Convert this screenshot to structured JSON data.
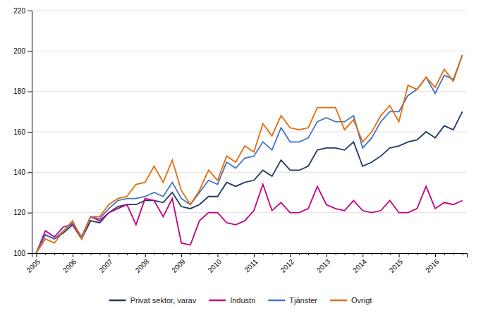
{
  "chart_data": {
    "type": "line",
    "categories": [
      "2005",
      null,
      null,
      null,
      "2006",
      null,
      null,
      null,
      "2007",
      null,
      null,
      null,
      "2008",
      null,
      null,
      null,
      "2009",
      null,
      null,
      null,
      "2010",
      null,
      null,
      null,
      "2011",
      null,
      null,
      null,
      "2012",
      null,
      null,
      null,
      "2013",
      null,
      null,
      null,
      "2014",
      null,
      null,
      null,
      "2015",
      null,
      null,
      null,
      "2016",
      null,
      null,
      null
    ],
    "series": [
      {
        "name": "Privat sektor, varav",
        "color": "#1f3864",
        "values": [
          100,
          109,
          107,
          110,
          114,
          107,
          116,
          115,
          120,
          123,
          124,
          124,
          126,
          126,
          125,
          130,
          123,
          122,
          124,
          128,
          128,
          135,
          133,
          135,
          136,
          141,
          138,
          146,
          141,
          141,
          143,
          151,
          152,
          152,
          151,
          155,
          143,
          145,
          148,
          152,
          153,
          155,
          156,
          160,
          157,
          163,
          161,
          170
        ]
      },
      {
        "name": "Industri",
        "color": "#c00080",
        "values": [
          100,
          111,
          108,
          113,
          114,
          108,
          118,
          116,
          120,
          122,
          124,
          114,
          127,
          126,
          118,
          127,
          105,
          104,
          116,
          120,
          120,
          115,
          114,
          116,
          121,
          134,
          121,
          125,
          120,
          120,
          122,
          133,
          124,
          122,
          121,
          126,
          121,
          120,
          121,
          126,
          120,
          120,
          122,
          133,
          122,
          125,
          124,
          126
        ]
      },
      {
        "name": "Tjänster",
        "color": "#4472c4",
        "values": [
          100,
          109,
          107,
          111,
          115,
          108,
          118,
          117,
          122,
          126,
          127,
          127,
          128,
          130,
          128,
          135,
          127,
          124,
          130,
          136,
          134,
          145,
          142,
          147,
          148,
          155,
          151,
          162,
          155,
          155,
          157,
          165,
          167,
          165,
          165,
          168,
          152,
          157,
          165,
          170,
          170,
          178,
          181,
          187,
          179,
          188,
          186,
          198
        ]
      },
      {
        "name": "Övrigt",
        "color": "#e36c09",
        "values": [
          100,
          107,
          105,
          111,
          116,
          107,
          118,
          118,
          124,
          127,
          128,
          134,
          135,
          143,
          135,
          146,
          131,
          124,
          131,
          141,
          136,
          148,
          145,
          153,
          150,
          164,
          158,
          168,
          162,
          161,
          162,
          172,
          172,
          172,
          161,
          166,
          155,
          160,
          168,
          173,
          165,
          183,
          181,
          187,
          182,
          191,
          185,
          198
        ]
      }
    ],
    "ylim": [
      100,
      220
    ],
    "yticks": [
      100,
      120,
      140,
      160,
      180,
      200,
      220
    ],
    "grid": true,
    "legend": "bottom"
  }
}
